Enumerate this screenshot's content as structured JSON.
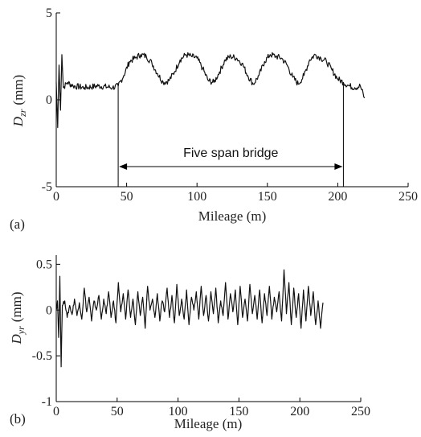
{
  "chart_data": [
    {
      "type": "line",
      "panel_label": "(a)",
      "xlabel": "Mileage (m)",
      "ylabel_main": "D",
      "ylabel_sub": "zr",
      "ylabel_unit": "(mm)",
      "xlim": [
        0,
        250
      ],
      "ylim": [
        -5,
        5
      ],
      "x_ticks": [
        0,
        50,
        100,
        150,
        200,
        250
      ],
      "y_ticks": [
        -5,
        0,
        5
      ],
      "grid": false,
      "annotation": {
        "text": "Five span bridge",
        "x_start": 44,
        "x_end": 204
      },
      "series": [
        {
          "x": [
            0,
            1,
            2,
            3,
            4,
            5,
            8,
            12,
            20,
            30,
            40,
            44,
            48,
            52,
            56,
            60,
            64,
            68,
            72,
            76,
            80,
            84,
            88,
            92,
            96,
            100,
            104,
            108,
            112,
            116,
            120,
            124,
            128,
            132,
            136,
            140,
            144,
            148,
            152,
            156,
            160,
            164,
            168,
            172,
            176,
            180,
            184,
            188,
            192,
            196,
            200,
            204,
            208,
            212,
            216,
            219
          ],
          "y": [
            1.0,
            -1.6,
            2.0,
            -0.6,
            2.6,
            0.7,
            1.0,
            0.8,
            0.7,
            0.8,
            0.7,
            0.8,
            1.4,
            2.2,
            2.4,
            2.6,
            2.5,
            2.1,
            1.5,
            1.0,
            1.1,
            1.6,
            2.3,
            2.6,
            2.5,
            2.4,
            1.8,
            1.1,
            1.0,
            1.6,
            2.3,
            2.5,
            2.4,
            2.1,
            1.4,
            0.9,
            1.4,
            2.2,
            2.6,
            2.5,
            2.4,
            2.0,
            1.3,
            0.9,
            1.4,
            2.3,
            2.6,
            2.4,
            2.2,
            1.7,
            1.2,
            1.0,
            0.8,
            0.7,
            0.8,
            0.1
          ]
        }
      ]
    },
    {
      "type": "line",
      "panel_label": "(b)",
      "xlabel": "Mileage (m)",
      "ylabel_main": "D",
      "ylabel_sub": "yr",
      "ylabel_unit": "(mm)",
      "xlim": [
        0,
        250
      ],
      "ylim": [
        -1,
        0.6
      ],
      "x_ticks": [
        0,
        50,
        100,
        150,
        200,
        250
      ],
      "y_ticks": [
        -1,
        -0.5,
        0,
        0.5
      ],
      "y_tick_labels": [
        "-1",
        "-0.5",
        "0",
        "0.5"
      ],
      "grid": false,
      "series": [
        {
          "x": [
            0,
            1,
            2,
            3,
            4,
            5,
            7,
            9,
            11,
            13,
            15,
            17,
            19,
            21,
            23,
            25,
            27,
            29,
            31,
            33,
            35,
            37,
            39,
            41,
            43,
            45,
            47,
            49,
            51,
            53,
            55,
            57,
            59,
            61,
            63,
            65,
            67,
            69,
            71,
            73,
            75,
            77,
            79,
            81,
            83,
            85,
            87,
            89,
            91,
            93,
            95,
            97,
            99,
            101,
            103,
            105,
            107,
            109,
            111,
            113,
            115,
            117,
            119,
            121,
            123,
            125,
            127,
            129,
            131,
            133,
            135,
            137,
            139,
            141,
            143,
            145,
            147,
            149,
            151,
            153,
            155,
            157,
            159,
            161,
            163,
            165,
            167,
            169,
            171,
            173,
            175,
            177,
            179,
            181,
            183,
            185,
            187,
            189,
            191,
            193,
            195,
            197,
            199,
            201,
            203,
            205,
            207,
            209,
            211,
            213,
            215,
            217,
            219
          ],
          "y": [
            0.0,
            0.1,
            -0.3,
            0.37,
            -0.62,
            0.05,
            0.1,
            -0.08,
            0.05,
            -0.05,
            0.12,
            -0.06,
            0.08,
            -0.1,
            0.24,
            -0.02,
            0.14,
            -0.12,
            0.1,
            0.0,
            0.16,
            -0.1,
            0.12,
            -0.04,
            0.2,
            -0.08,
            0.1,
            -0.14,
            0.3,
            -0.02,
            0.18,
            -0.1,
            0.22,
            -0.08,
            0.12,
            -0.16,
            0.2,
            -0.06,
            0.14,
            -0.2,
            0.26,
            0.0,
            0.12,
            -0.08,
            0.18,
            -0.12,
            0.1,
            -0.02,
            0.24,
            -0.08,
            0.16,
            -0.14,
            0.28,
            -0.06,
            0.12,
            -0.1,
            0.22,
            -0.16,
            0.14,
            0.0,
            0.2,
            -0.1,
            0.26,
            -0.06,
            0.16,
            -0.12,
            0.2,
            -0.04,
            0.24,
            -0.14,
            0.1,
            -0.06,
            0.3,
            -0.1,
            0.18,
            -0.02,
            0.22,
            -0.16,
            0.26,
            -0.08,
            0.12,
            -0.12,
            0.28,
            -0.04,
            0.16,
            -0.1,
            0.22,
            -0.14,
            0.18,
            -0.06,
            0.26,
            -0.1,
            0.14,
            -0.02,
            0.2,
            -0.12,
            0.44,
            -0.04,
            0.3,
            -0.16,
            0.24,
            -0.08,
            0.18,
            -0.2,
            0.22,
            -0.12,
            0.26,
            -0.06,
            0.2,
            -0.16,
            0.1,
            -0.2,
            0.08
          ]
        }
      ]
    }
  ]
}
